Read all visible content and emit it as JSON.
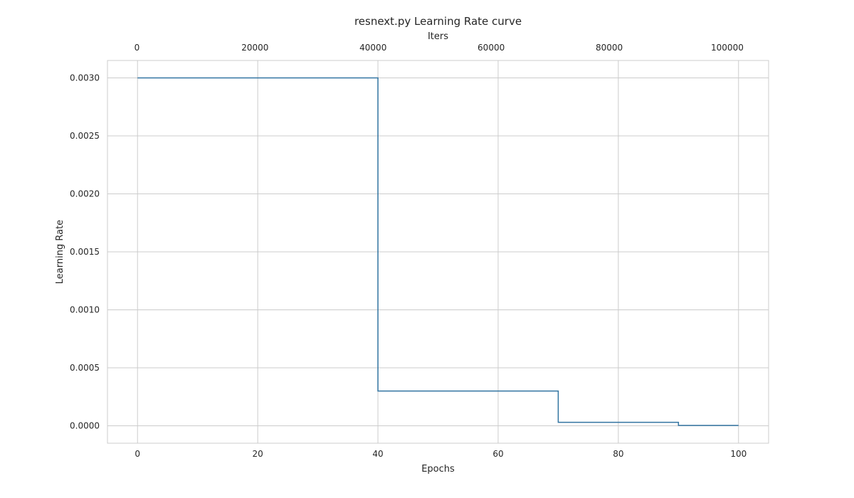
{
  "colors": {
    "series": "#3274a1",
    "grid": "#cccccc",
    "frame": "#cccccc",
    "text": "#262626",
    "background": "#ffffff"
  },
  "chart_data": {
    "type": "line",
    "drawstyle": "steps-post",
    "title": "resnext.py Learning Rate curve",
    "xlabel": "Epochs",
    "ylabel": "Learning Rate",
    "x2label": "Iters",
    "grid": true,
    "xlim": [
      -5,
      105
    ],
    "ylim": [
      -0.00015,
      0.00315
    ],
    "x2lim": [
      -5000,
      107000
    ],
    "xticks": [
      0,
      20,
      40,
      60,
      80,
      100
    ],
    "xtick_labels": [
      "0",
      "20",
      "40",
      "60",
      "80",
      "100"
    ],
    "yticks": [
      0.0,
      0.0005,
      0.001,
      0.0015,
      0.002,
      0.0025,
      0.003
    ],
    "ytick_labels": [
      "0.0000",
      "0.0005",
      "0.0010",
      "0.0015",
      "0.0020",
      "0.0025",
      "0.0030"
    ],
    "x2ticks": [
      0,
      20000,
      40000,
      60000,
      80000,
      100000
    ],
    "x2tick_labels": [
      "0",
      "20000",
      "40000",
      "60000",
      "80000",
      "100000"
    ],
    "series": [
      {
        "x": [
          0,
          40,
          70,
          90,
          100
        ],
        "y": [
          0.003,
          0.0003,
          3e-05,
          3e-06,
          3e-06
        ]
      }
    ]
  }
}
